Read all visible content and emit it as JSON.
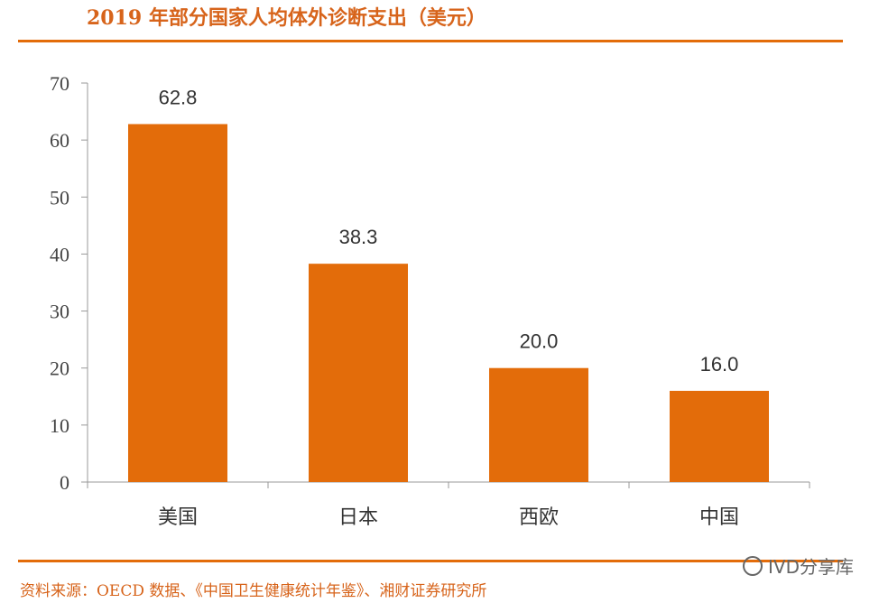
{
  "header": {
    "title": "2019 年部分国家人均体外诊断支出（美元）"
  },
  "footer": {
    "source": "资料来源：OECD 数据、《中国卫生健康统计年鉴》、湘财证券研究所"
  },
  "watermark": {
    "text": "IVD分享库",
    "icon": "wechat-icon"
  },
  "colors": {
    "bar": "#e36c0a",
    "accent": "#d7641b",
    "axis": "#999999"
  },
  "chart_data": {
    "type": "bar",
    "title": "",
    "xlabel": "",
    "ylabel": "",
    "categories": [
      "美国",
      "日本",
      "西欧",
      "中国"
    ],
    "values": [
      62.8,
      38.3,
      20.0,
      16.0
    ],
    "data_labels": [
      "62.8",
      "38.3",
      "20.0",
      "16.0"
    ],
    "ylim": [
      0,
      70
    ],
    "yticks": [
      0,
      10,
      20,
      30,
      40,
      50,
      60,
      70
    ],
    "grid": false,
    "legend": "none"
  }
}
